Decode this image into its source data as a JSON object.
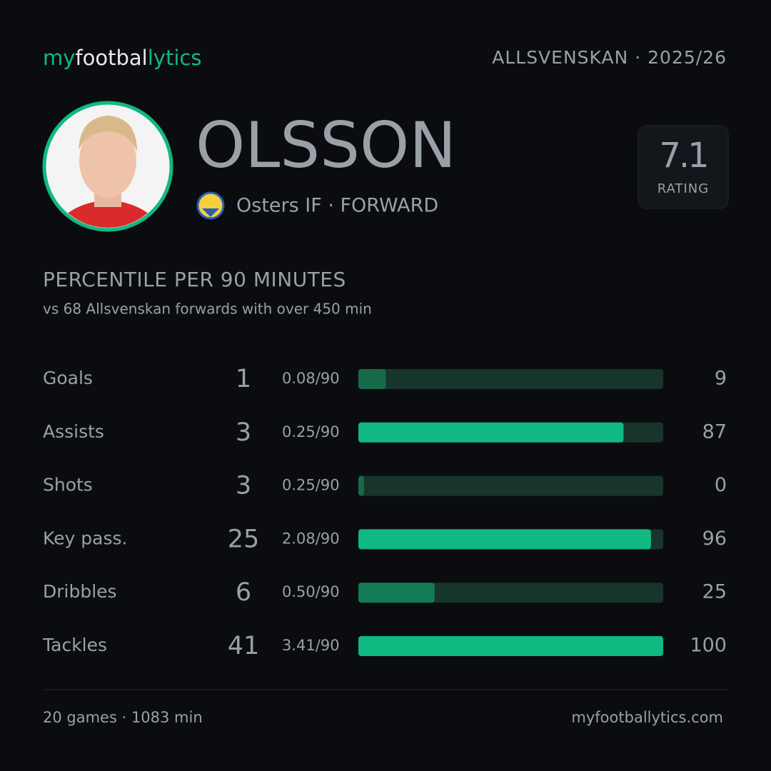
{
  "header": {
    "brand": [
      "my",
      "footbal",
      "lytics"
    ],
    "competition": "ALLSVENSKAN · 2025/26"
  },
  "player": {
    "name": "OLSSON",
    "team_position": "Osters IF · FORWARD",
    "rating": 7.1,
    "rating_label": "RATING"
  },
  "section": {
    "title": "PERCENTILE PER 90 MINUTES",
    "subtitle": "vs 68 Allsvenskan forwards with over 450 min"
  },
  "stats": {
    "xlim": [
      0,
      100
    ],
    "rows": [
      {
        "label": "Goals",
        "total": 1,
        "per90": "0.08/90",
        "percentile": 9,
        "color": "#17694a"
      },
      {
        "label": "Assists",
        "total": 3,
        "per90": "0.25/90",
        "percentile": 87,
        "color": "#10b981"
      },
      {
        "label": "Shots",
        "total": 3,
        "per90": "0.25/90",
        "percentile": 0,
        "color": "#17694a"
      },
      {
        "label": "Key pass.",
        "total": 25,
        "per90": "2.08/90",
        "percentile": 96,
        "color": "#10b981"
      },
      {
        "label": "Dribbles",
        "total": 6,
        "per90": "0.50/90",
        "percentile": 25,
        "color": "#137a56"
      },
      {
        "label": "Tackles",
        "total": 41,
        "per90": "3.41/90",
        "percentile": 100,
        "color": "#10b981"
      }
    ]
  },
  "footer": {
    "left": "20 games · 1083 min",
    "right": "myfootballytics.com"
  }
}
